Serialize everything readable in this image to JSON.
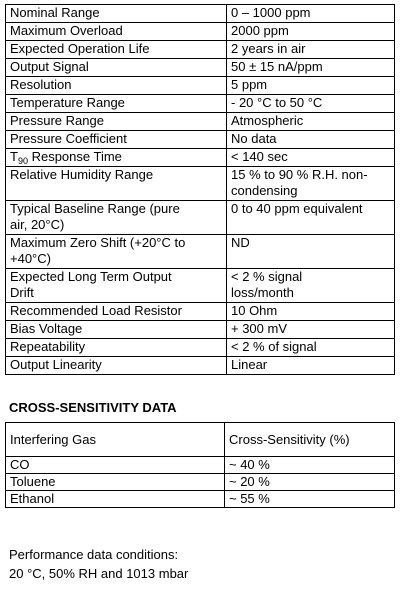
{
  "specs": {
    "rows": [
      [
        [
          "Nominal Range"
        ],
        [
          "0 – 1000 ppm"
        ]
      ],
      [
        [
          "Maximum Overload"
        ],
        [
          "2000 ppm"
        ]
      ],
      [
        [
          "Expected Operation Life"
        ],
        [
          "2 years in air"
        ]
      ],
      [
        [
          "Output Signal"
        ],
        [
          "50  ± 15 nA/ppm"
        ]
      ],
      [
        [
          "Resolution"
        ],
        [
          "5 ppm"
        ]
      ],
      [
        [
          "Temperature Range"
        ],
        [
          "- 20 °C to 50 °C"
        ]
      ],
      [
        [
          "Pressure Range"
        ],
        [
          "Atmospheric"
        ]
      ],
      [
        [
          "Pressure Coefficient"
        ],
        [
          "No data"
        ]
      ],
      [
        {
          "base": "T",
          "sub": "90",
          "text": " Response Time"
        },
        [
          "< 140 sec"
        ]
      ],
      [
        [
          "Relative Humidity Range"
        ],
        [
          "15 % to 90 % R.H. non-",
          "condensing"
        ]
      ],
      [
        [
          "Typical Baseline Range (pure",
          "air, 20°C)"
        ],
        [
          "0 to 40 ppm equivalent"
        ]
      ],
      [
        [
          "Maximum Zero Shift (+20°C to",
          "+40°C)"
        ],
        [
          "ND"
        ]
      ],
      [
        [
          "Expected Long Term Output",
          "Drift"
        ],
        [
          "< 2 % signal",
          "loss/month"
        ]
      ],
      [
        [
          "Recommended Load Resistor"
        ],
        [
          "10 Ohm"
        ]
      ],
      [
        [
          "Bias Voltage"
        ],
        [
          "+ 300 mV"
        ]
      ],
      [
        [
          "Repeatability"
        ],
        [
          "< 2 % of signal"
        ]
      ],
      [
        [
          "Output Linearity"
        ],
        [
          "Linear"
        ]
      ]
    ]
  },
  "cross_sensitivity": {
    "title": "CROSS-SENSITIVITY DATA",
    "header": [
      "Interfering Gas",
      "Cross-Sensitivity (%)"
    ],
    "rows": [
      [
        "CO",
        "~ 40 %"
      ],
      [
        "Toluene",
        "~ 20 %"
      ],
      [
        "Ethanol",
        "~ 55 %"
      ]
    ]
  },
  "notes": [
    "Performance data conditions:",
    "20 °C, 50% RH and 1013 mbar"
  ]
}
